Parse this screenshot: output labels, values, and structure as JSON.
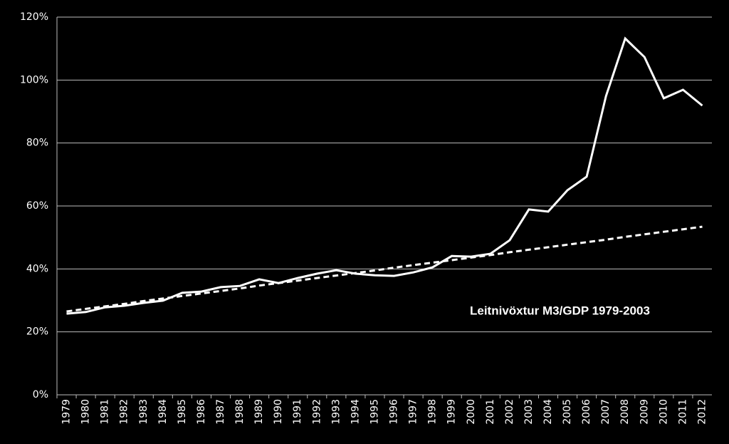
{
  "chart_data": {
    "type": "line",
    "annotation": "Leitnivöxtur M3/GDP 1979-2003",
    "categories": [
      "1979",
      "1980",
      "1981",
      "1982",
      "1983",
      "1984",
      "1985",
      "1986",
      "1987",
      "1988",
      "1989",
      "1990",
      "1991",
      "1992",
      "1993",
      "1994",
      "1995",
      "1996",
      "1997",
      "1998",
      "1999",
      "2000",
      "2001",
      "2002",
      "2003",
      "2004",
      "2005",
      "2006",
      "2007",
      "2008",
      "2009",
      "2010",
      "2011",
      "2012"
    ],
    "series": [
      {
        "color": "#ffffff",
        "dashed": false,
        "values": [
          25.8,
          26.3,
          27.8,
          28.3,
          29.2,
          29.9,
          32.4,
          32.8,
          34.2,
          34.6,
          36.7,
          35.5,
          37.1,
          38.5,
          39.6,
          38.5,
          38.0,
          37.8,
          38.9,
          40.5,
          44.1,
          43.9,
          44.8,
          49.1,
          58.9,
          58.2,
          65.0,
          69.3,
          94.9,
          113.2,
          107.3,
          94.2,
          96.9,
          91.9
        ]
      },
      {
        "color": "#ffffff",
        "dashed": true,
        "values": [
          26.5,
          27.3,
          28.1,
          28.9,
          29.8,
          30.6,
          31.4,
          32.2,
          33.0,
          33.8,
          34.7,
          35.5,
          36.3,
          37.1,
          37.9,
          38.7,
          39.5,
          40.4,
          41.2,
          42.0,
          42.8,
          43.6,
          44.4,
          45.3,
          46.1,
          46.9,
          47.7,
          48.5,
          49.3,
          50.2,
          51.0,
          51.8,
          52.6,
          53.4
        ]
      }
    ],
    "ylim": [
      0,
      120
    ],
    "yticks": [
      {
        "value": 0,
        "label": "0%"
      },
      {
        "value": 20,
        "label": "20%"
      },
      {
        "value": 40,
        "label": "40%"
      },
      {
        "value": 60,
        "label": "60%"
      },
      {
        "value": 80,
        "label": "80%"
      },
      {
        "value": 100,
        "label": "100%"
      },
      {
        "value": 120,
        "label": "120%"
      }
    ],
    "grid": true
  }
}
